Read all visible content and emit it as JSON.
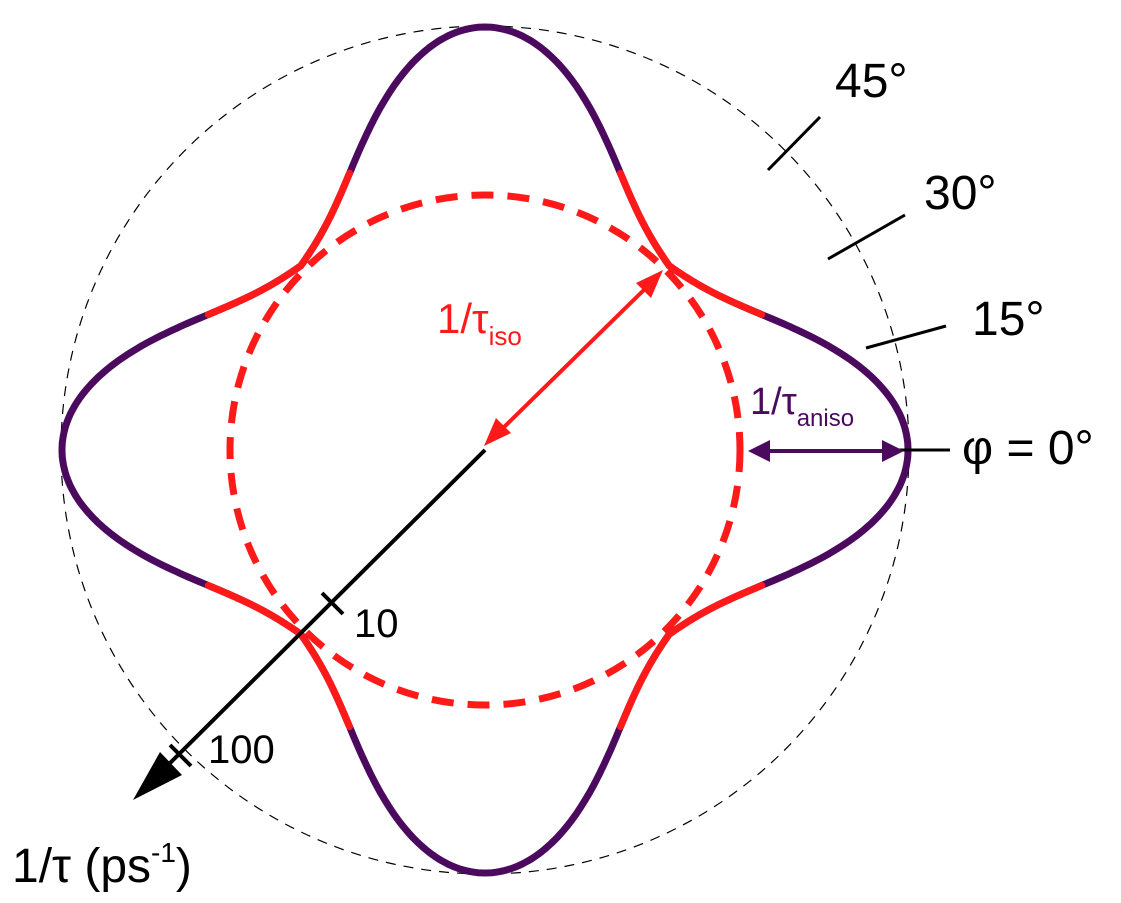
{
  "diagram": {
    "colors": {
      "aniso": "#4b0a5e",
      "iso": "#ff1a1a",
      "guide": "#000000"
    },
    "angle_labels": [
      "45°",
      "30°",
      "15°",
      "φ = 0°"
    ],
    "iso_label": {
      "main": "1/τ",
      "sub": "iso"
    },
    "aniso_label": {
      "main": "1/τ",
      "sub": "aniso"
    },
    "axis_label": {
      "main": "1/τ (ps",
      "sup": "-1",
      "tail": ")"
    },
    "axis_ticks": [
      "10",
      "100"
    ]
  }
}
